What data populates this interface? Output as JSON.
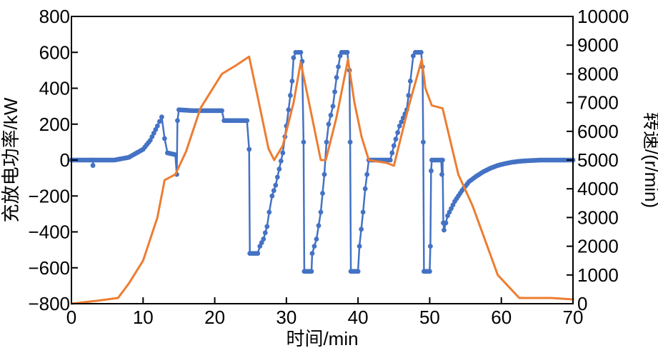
{
  "chart_data": {
    "type": "line",
    "title": "",
    "xlabel": "时间/min",
    "ylabel_left": "充放电功率/kW",
    "ylabel_right": "转速/(r/min)",
    "xlim": [
      0,
      70
    ],
    "ylim_left": [
      -800,
      800
    ],
    "ylim_right": [
      0,
      10000
    ],
    "x_ticks": [
      0,
      10,
      20,
      30,
      40,
      50,
      60,
      70
    ],
    "y_ticks_left": [
      -800,
      -600,
      -400,
      -200,
      0,
      200,
      400,
      600,
      800
    ],
    "y_tick_labels_left": [
      "−800",
      "−600",
      "−400",
      "−200",
      "0",
      "200",
      "400",
      "600",
      "800"
    ],
    "y_ticks_right": [
      0,
      1000,
      2000,
      3000,
      4000,
      5000,
      6000,
      7000,
      8000,
      9000,
      10000
    ],
    "series": [
      {
        "name": "充放电功率",
        "axis": "left",
        "color": "#4472C4",
        "marker": "circle",
        "points": [
          [
            0,
            0
          ],
          [
            3,
            0
          ],
          [
            3,
            -30
          ],
          [
            3,
            0
          ],
          [
            6,
            0
          ],
          [
            8,
            15
          ],
          [
            10,
            60
          ],
          [
            11,
            110
          ],
          [
            12,
            190
          ],
          [
            12.6,
            240
          ],
          [
            13,
            120
          ],
          [
            13.4,
            40
          ],
          [
            14.5,
            30
          ],
          [
            14.7,
            -80
          ],
          [
            14.8,
            220
          ],
          [
            15,
            280
          ],
          [
            17,
            275
          ],
          [
            21,
            275
          ],
          [
            21.3,
            220
          ],
          [
            24.5,
            220
          ],
          [
            24.8,
            60
          ],
          [
            24.9,
            -520
          ],
          [
            26,
            -520
          ],
          [
            26.3,
            -480
          ],
          [
            26.8,
            -440
          ],
          [
            27.3,
            -370
          ],
          [
            27.6,
            -290
          ],
          [
            28,
            -200
          ],
          [
            28.5,
            -140
          ],
          [
            29,
            -50
          ],
          [
            29.5,
            40
          ],
          [
            29.8,
            130
          ],
          [
            30,
            190
          ],
          [
            30.3,
            280
          ],
          [
            30.8,
            440
          ],
          [
            31,
            570
          ],
          [
            31.3,
            600
          ],
          [
            32,
            600
          ],
          [
            32.2,
            550
          ],
          [
            32.4,
            100
          ],
          [
            32.5,
            -620
          ],
          [
            33.5,
            -620
          ],
          [
            33.6,
            -520
          ],
          [
            34.2,
            -440
          ],
          [
            34.8,
            -290
          ],
          [
            35.3,
            -80
          ],
          [
            35.6,
            100
          ],
          [
            35.9,
            200
          ],
          [
            36.5,
            300
          ],
          [
            37,
            460
          ],
          [
            37.5,
            580
          ],
          [
            37.7,
            600
          ],
          [
            38.5,
            600
          ],
          [
            38.8,
            500
          ],
          [
            38.9,
            100
          ],
          [
            39,
            -620
          ],
          [
            40,
            -620
          ],
          [
            40.2,
            -480
          ],
          [
            40.7,
            -290
          ],
          [
            41,
            -160
          ],
          [
            41.5,
            0
          ],
          [
            44,
            0
          ],
          [
            44.5,
            0
          ],
          [
            45,
            80
          ],
          [
            45.8,
            190
          ],
          [
            46.8,
            280
          ],
          [
            47.3,
            440
          ],
          [
            47.7,
            580
          ],
          [
            48,
            600
          ],
          [
            48.8,
            600
          ],
          [
            49,
            520
          ],
          [
            49.1,
            100
          ],
          [
            49.2,
            -620
          ],
          [
            50,
            -620
          ],
          [
            50.1,
            -480
          ],
          [
            50.2,
            -60
          ],
          [
            50.3,
            0
          ],
          [
            51.6,
            0
          ],
          [
            51.7,
            -80
          ],
          [
            51.8,
            0
          ],
          [
            51.9,
            -350
          ],
          [
            52,
            -390
          ],
          [
            52.5,
            -310
          ],
          [
            53.5,
            -230
          ],
          [
            54.5,
            -170
          ],
          [
            55.5,
            -120
          ],
          [
            56.5,
            -90
          ],
          [
            57.5,
            -65
          ],
          [
            58.5,
            -45
          ],
          [
            59.5,
            -30
          ],
          [
            60.5,
            -20
          ],
          [
            61.5,
            -12
          ],
          [
            62.5,
            -7
          ],
          [
            63.5,
            -4
          ],
          [
            64.5,
            -2
          ],
          [
            65.5,
            0
          ],
          [
            70,
            0
          ]
        ]
      },
      {
        "name": "转速",
        "axis": "right",
        "color": "#ED7D31",
        "marker": "none",
        "points": [
          [
            0,
            0
          ],
          [
            3.5,
            100
          ],
          [
            6.5,
            200
          ],
          [
            8,
            700
          ],
          [
            10,
            1500
          ],
          [
            12,
            3000
          ],
          [
            13,
            4300
          ],
          [
            14.5,
            4500
          ],
          [
            16,
            5300
          ],
          [
            18,
            6800
          ],
          [
            21,
            8000
          ],
          [
            23,
            8300
          ],
          [
            24.8,
            8600
          ],
          [
            26,
            7200
          ],
          [
            27.5,
            5400
          ],
          [
            28.3,
            5000
          ],
          [
            29.5,
            5500
          ],
          [
            31,
            7000
          ],
          [
            32,
            8400
          ],
          [
            33,
            7200
          ],
          [
            34.8,
            5000
          ],
          [
            35.5,
            5000
          ],
          [
            37,
            6500
          ],
          [
            38.6,
            8500
          ],
          [
            39.5,
            7000
          ],
          [
            40.5,
            5800
          ],
          [
            41.5,
            5000
          ],
          [
            44,
            4900
          ],
          [
            45,
            4800
          ],
          [
            47,
            6800
          ],
          [
            48.9,
            8500
          ],
          [
            49.4,
            7500
          ],
          [
            50.3,
            6900
          ],
          [
            51.8,
            6800
          ],
          [
            54,
            4500
          ],
          [
            56,
            3400
          ],
          [
            59.5,
            1000
          ],
          [
            62.5,
            200
          ],
          [
            64,
            200
          ],
          [
            67,
            200
          ],
          [
            70,
            150
          ]
        ]
      }
    ]
  }
}
